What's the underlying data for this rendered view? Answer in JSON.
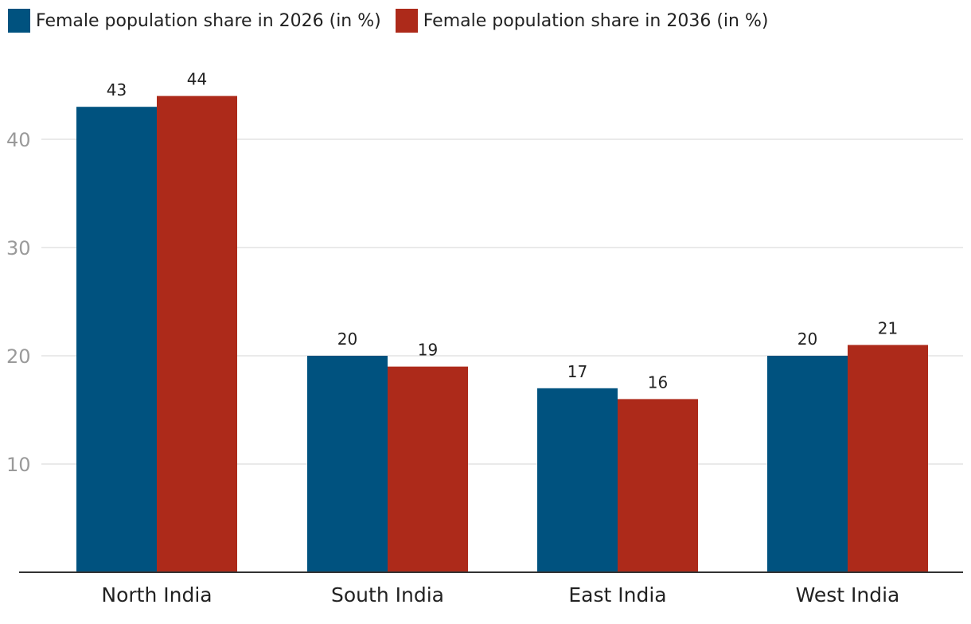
{
  "chart_data": {
    "type": "bar",
    "title": "",
    "xlabel": "",
    "ylabel": "",
    "categories": [
      "North India",
      "South India",
      "East India",
      "West India"
    ],
    "series": [
      {
        "name": "Female population share in 2026 (in %)",
        "color": "#00527f",
        "values": [
          43,
          20,
          17,
          20
        ]
      },
      {
        "name": "Female population share in 2036 (in %)",
        "color": "#ad2a1a",
        "values": [
          44,
          19,
          16,
          21
        ]
      }
    ],
    "yticks": [
      10,
      20,
      30,
      40
    ],
    "ylim": [
      0,
      46
    ],
    "grid": true,
    "legend_position": "top-left",
    "colors": {
      "grid": "#e3e3e3",
      "axis": "#333333"
    }
  }
}
